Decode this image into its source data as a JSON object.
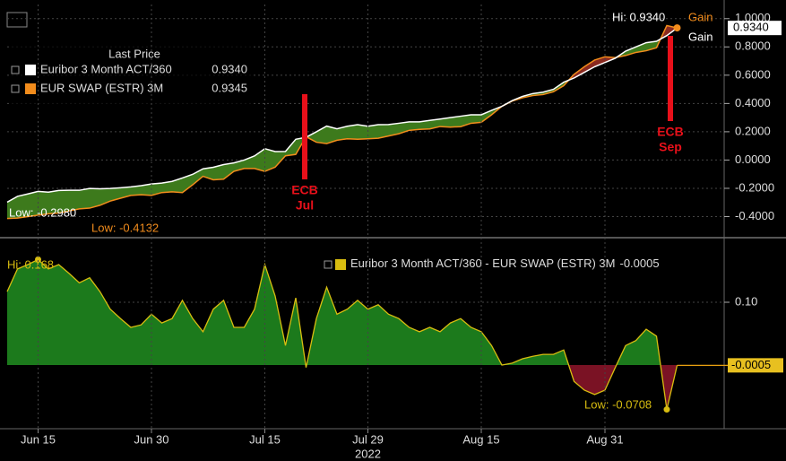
{
  "chart_data": [
    {
      "type": "line",
      "legend_title": "Last Price",
      "series": [
        {
          "name": "Euribor 3 Month ACT/360",
          "color": "#ffffff",
          "legend_value": "0.9340",
          "values": [
            -0.298,
            -0.257,
            -0.24,
            -0.222,
            -0.227,
            -0.215,
            -0.214,
            -0.214,
            -0.201,
            -0.203,
            -0.201,
            -0.196,
            -0.19,
            -0.181,
            -0.169,
            -0.163,
            -0.151,
            -0.127,
            -0.101,
            -0.062,
            -0.051,
            -0.032,
            -0.02,
            0.0,
            0.029,
            0.08,
            0.06,
            0.061,
            0.147,
            0.161,
            0.2,
            0.24,
            0.221,
            0.239,
            0.25,
            0.239,
            0.25,
            0.251,
            0.26,
            0.27,
            0.27,
            0.28,
            0.29,
            0.3,
            0.31,
            0.32,
            0.32,
            0.351,
            0.38,
            0.42,
            0.45,
            0.47,
            0.48,
            0.5,
            0.55,
            0.58,
            0.62,
            0.66,
            0.69,
            0.72,
            0.77,
            0.8,
            0.83,
            0.84,
            0.88,
            0.934
          ]
        },
        {
          "name": "EUR SWAP (ESTR) 3M",
          "color": "#f28c1c",
          "legend_value": "0.9345",
          "values": [
            -0.4132,
            -0.41,
            -0.4,
            -0.39,
            -0.38,
            -0.375,
            -0.36,
            -0.345,
            -0.34,
            -0.32,
            -0.29,
            -0.27,
            -0.25,
            -0.245,
            -0.25,
            -0.23,
            -0.225,
            -0.23,
            -0.175,
            -0.115,
            -0.14,
            -0.135,
            -0.08,
            -0.06,
            -0.06,
            -0.08,
            -0.05,
            0.03,
            0.04,
            0.165,
            0.126,
            0.116,
            0.14,
            0.15,
            0.147,
            0.15,
            0.154,
            0.17,
            0.186,
            0.21,
            0.217,
            0.22,
            0.237,
            0.233,
            0.236,
            0.26,
            0.267,
            0.32,
            0.38,
            0.417,
            0.44,
            0.456,
            0.463,
            0.483,
            0.526,
            0.606,
            0.66,
            0.707,
            0.73,
            0.724,
            0.739,
            0.761,
            0.773,
            0.794,
            0.951,
            0.9345
          ]
        }
      ],
      "last_value_label": "0.9340",
      "ylim": [
        -0.53,
        1.1
      ],
      "yticks": [
        {
          "value": 1.0,
          "label": "1.0000"
        },
        {
          "value": 0.8,
          "label": "0.8000"
        },
        {
          "value": 0.6,
          "label": "0.6000"
        },
        {
          "value": 0.4,
          "label": "0.4000"
        },
        {
          "value": 0.2,
          "label": "0.2000"
        },
        {
          "value": 0.0,
          "label": "0.0000"
        },
        {
          "value": -0.2,
          "label": "-0.2000"
        },
        {
          "value": -0.4,
          "label": "-0.4000"
        }
      ],
      "grid": true,
      "positive_color": "#3d7a1c",
      "negative_color": "#8a2a20",
      "annotations": [
        {
          "text": "Hi: 0.9340",
          "color": "#ffffff"
        },
        {
          "text": "Gain",
          "color": "#f28c1c"
        },
        {
          "text": "Gain",
          "color": "#ffffff"
        },
        {
          "text": "Low: -0.2980",
          "color": "#ffffff"
        },
        {
          "text": "Low: -0.4132",
          "color": "#f28c1c"
        }
      ],
      "events": [
        {
          "lines": [
            "ECB",
            "Jul"
          ]
        },
        {
          "lines": [
            "ECB",
            "Sep"
          ]
        }
      ],
      "event_color": "#e8101a"
    },
    {
      "type": "area",
      "categories": [
        null,
        null,
        null,
        "Jun 15",
        null,
        null,
        null,
        null,
        null,
        null,
        null,
        null,
        null,
        null,
        "Jun 30",
        null,
        null,
        null,
        null,
        null,
        null,
        null,
        null,
        null,
        null,
        "Jul 15",
        null,
        null,
        null,
        null,
        null,
        null,
        null,
        null,
        null,
        "Jul 29",
        null,
        null,
        null,
        null,
        null,
        null,
        null,
        null,
        null,
        null,
        "Aug 15",
        null,
        null,
        null,
        null,
        null,
        null,
        null,
        null,
        null,
        null,
        null,
        "Aug 31",
        null,
        null,
        null,
        null,
        null,
        null,
        null
      ],
      "x_axis_year": "2022",
      "series": [
        {
          "name": "Euribor 3 Month ACT/360 - EUR SWAP (ESTR) 3M",
          "color": "#d8bd10",
          "legend_value": "-0.0005",
          "values": [
            0.117,
            0.153,
            0.16,
            0.168,
            0.153,
            0.16,
            0.146,
            0.131,
            0.139,
            0.117,
            0.089,
            0.074,
            0.06,
            0.064,
            0.081,
            0.067,
            0.074,
            0.103,
            0.074,
            0.053,
            0.089,
            0.103,
            0.06,
            0.06,
            0.089,
            0.16,
            0.11,
            0.031,
            0.107,
            -0.004,
            0.074,
            0.124,
            0.081,
            0.089,
            0.103,
            0.089,
            0.096,
            0.081,
            0.074,
            0.06,
            0.053,
            0.06,
            0.053,
            0.067,
            0.074,
            0.06,
            0.053,
            0.031,
            0.0,
            0.003,
            0.01,
            0.014,
            0.017,
            0.017,
            0.024,
            -0.026,
            -0.04,
            -0.047,
            -0.04,
            -0.004,
            0.031,
            0.039,
            0.057,
            0.046,
            -0.0708,
            -0.0005
          ]
        }
      ],
      "last_value_label": "-0.0005",
      "ylim": [
        -0.1,
        0.2
      ],
      "yticks": [
        {
          "value": 0.1,
          "label": "0.10"
        }
      ],
      "grid": true,
      "positive_color": "#1c7a1c",
      "negative_color": "#7a1224",
      "annotations": [
        {
          "text": "Hi: 0.168",
          "color": "#d8bd10"
        },
        {
          "text": "Low: -0.0708",
          "color": "#d8bd10"
        }
      ]
    }
  ]
}
